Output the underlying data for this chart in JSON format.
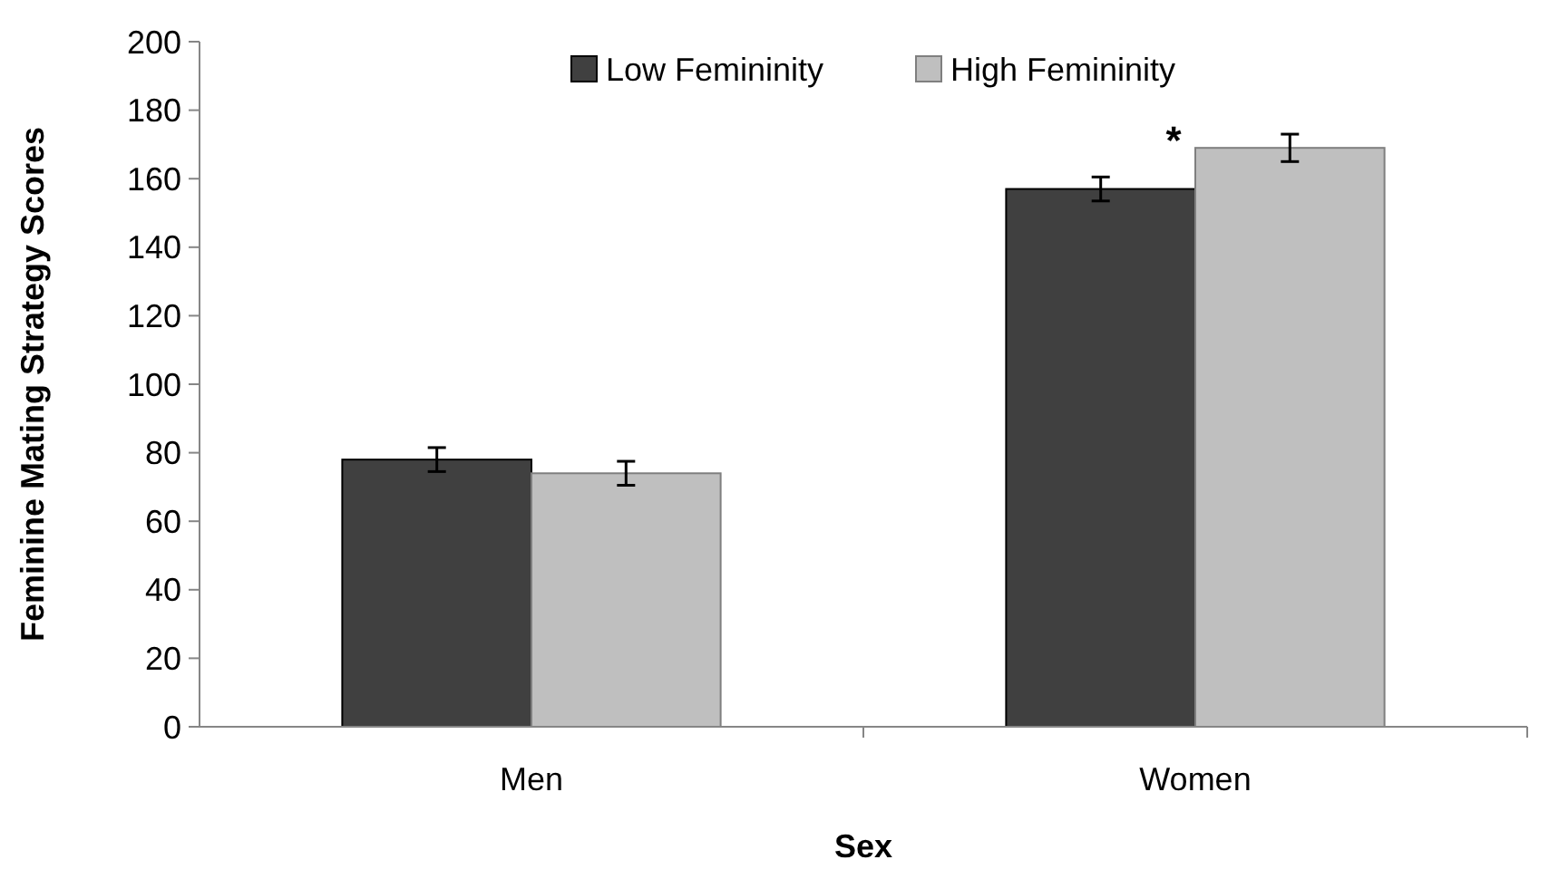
{
  "chart_data": {
    "type": "bar",
    "xlabel": "Sex",
    "ylabel": "Feminine Mating Strategy Scores",
    "categories": [
      "Men",
      "Women"
    ],
    "series": [
      {
        "name": "Low Femininity",
        "color": "#404040",
        "values": [
          78,
          157
        ],
        "errors": [
          3.5,
          3.5
        ]
      },
      {
        "name": "High Femininity",
        "color": "#bfbfbf",
        "values": [
          74,
          169
        ],
        "errors": [
          3.5,
          4
        ]
      }
    ],
    "ylim": [
      0,
      200
    ],
    "yticks": [
      0,
      20,
      40,
      60,
      80,
      100,
      120,
      140,
      160,
      180,
      200
    ],
    "grid": false,
    "legend": "top",
    "annotations": [
      "*"
    ]
  }
}
